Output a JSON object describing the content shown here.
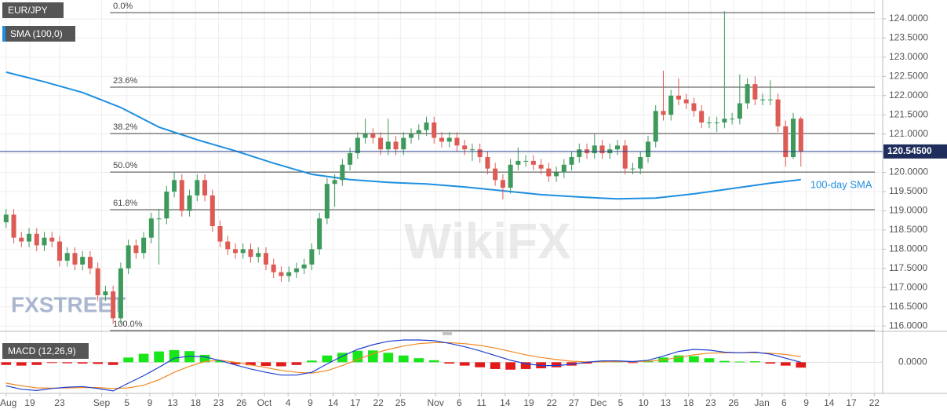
{
  "chart_data": [
    {
      "type": "candlestick",
      "title": "EUR/JPY",
      "up_color": "#3e9a5c",
      "down_color": "#dd5b55",
      "watermark": [
        "FXSTREET",
        "WikiFX"
      ],
      "xlim": [
        -0.8,
        114.7
      ],
      "xticks": [
        {
          "value": 0,
          "label": "Aug"
        },
        {
          "value": 3.1,
          "label": "19"
        },
        {
          "value": 7,
          "label": "23"
        },
        {
          "value": 12.5,
          "label": "Sep"
        },
        {
          "value": 15.8,
          "label": "5"
        },
        {
          "value": 18.8,
          "label": "9"
        },
        {
          "value": 21.8,
          "label": "13"
        },
        {
          "value": 24.8,
          "label": "18"
        },
        {
          "value": 27.8,
          "label": "23"
        },
        {
          "value": 30.8,
          "label": "26"
        },
        {
          "value": 33.8,
          "label": "Oct"
        },
        {
          "value": 36.9,
          "label": "4"
        },
        {
          "value": 39.8,
          "label": "9"
        },
        {
          "value": 42.8,
          "label": "14"
        },
        {
          "value": 45.7,
          "label": "17"
        },
        {
          "value": 48.7,
          "label": "22"
        },
        {
          "value": 51.6,
          "label": "25"
        },
        {
          "value": 56.2,
          "label": "Nov"
        },
        {
          "value": 59.3,
          "label": "6"
        },
        {
          "value": 62.2,
          "label": "11"
        },
        {
          "value": 65.3,
          "label": "14"
        },
        {
          "value": 68.4,
          "label": "19"
        },
        {
          "value": 71.4,
          "label": "22"
        },
        {
          "value": 74.3,
          "label": "27"
        },
        {
          "value": 77.5,
          "label": "Dec"
        },
        {
          "value": 80.4,
          "label": "5"
        },
        {
          "value": 83.4,
          "label": "10"
        },
        {
          "value": 86.3,
          "label": "13"
        },
        {
          "value": 89.3,
          "label": "18"
        },
        {
          "value": 92.2,
          "label": "23"
        },
        {
          "value": 95.2,
          "label": "26"
        },
        {
          "value": 98.9,
          "label": "Jan"
        },
        {
          "value": 101.8,
          "label": "6"
        },
        {
          "value": 104.7,
          "label": "9"
        },
        {
          "value": 107.7,
          "label": "14"
        },
        {
          "value": 110.6,
          "label": "17"
        },
        {
          "value": 113.6,
          "label": "22"
        }
      ],
      "ylim": [
        115.86,
        124.49
      ],
      "yticks": [
        {
          "value": 116.0,
          "label": "116.0000"
        },
        {
          "value": 116.5,
          "label": "116.5000"
        },
        {
          "value": 117.0,
          "label": "117.0000"
        },
        {
          "value": 117.5,
          "label": "117.5000"
        },
        {
          "value": 118.0,
          "label": "118.0000"
        },
        {
          "value": 118.5,
          "label": "118.5000"
        },
        {
          "value": 119.0,
          "label": "119.0000"
        },
        {
          "value": 119.5,
          "label": "119.5000"
        },
        {
          "value": 120.0,
          "label": "120.0000"
        },
        {
          "value": 120.5,
          "label": "120.5000"
        },
        {
          "value": 121.0,
          "label": "121.0000"
        },
        {
          "value": 121.5,
          "label": "121.5000"
        },
        {
          "value": 122.0,
          "label": "122.0000"
        },
        {
          "value": 122.5,
          "label": "122.5000"
        },
        {
          "value": 123.0,
          "label": "123.0000"
        },
        {
          "value": 123.5,
          "label": "123.5000"
        },
        {
          "value": 124.0,
          "label": "124.0000"
        }
      ],
      "grid": true,
      "open": [
        118.7,
        118.9,
        118.3,
        118.2,
        118.4,
        118.1,
        118.3,
        118.2,
        117.7,
        117.9,
        117.6,
        117.8,
        117.5,
        116.8,
        116.9,
        116.2,
        117.5,
        118.1,
        117.9,
        118.3,
        118.8,
        118.8,
        119.5,
        119.8,
        119.0,
        119.4,
        119.8,
        119.4,
        118.6,
        118.2,
        118.0,
        117.9,
        118.0,
        117.8,
        117.9,
        117.6,
        117.4,
        117.3,
        117.4,
        117.5,
        117.6,
        118.0,
        118.8,
        119.7,
        119.8,
        120.2,
        120.5,
        120.9,
        121.0,
        120.9,
        120.6,
        120.8,
        120.6,
        120.9,
        121.0,
        121.1,
        121.3,
        120.9,
        120.8,
        120.9,
        120.7,
        120.6,
        120.6,
        120.4,
        120.1,
        119.8,
        119.6,
        120.2,
        120.3,
        120.3,
        120.2,
        120.1,
        119.9,
        120.0,
        120.2,
        120.4,
        120.6,
        120.5,
        120.7,
        120.5,
        120.6,
        120.7,
        120.1,
        120.1,
        120.4,
        120.8,
        121.6,
        121.5,
        122.0,
        121.9,
        121.8,
        121.6,
        121.3,
        121.3,
        121.3,
        121.4,
        121.4,
        121.8,
        122.3,
        121.9,
        121.9,
        121.9,
        121.2,
        120.4,
        121.4
      ],
      "high": [
        119.05,
        119.05,
        118.45,
        118.55,
        118.55,
        118.45,
        118.45,
        118.35,
        118.05,
        118.05,
        117.95,
        117.95,
        117.65,
        117.05,
        117.05,
        117.65,
        118.25,
        118.25,
        118.45,
        118.95,
        119.05,
        119.65,
        120.0,
        119.95,
        119.55,
        119.95,
        119.95,
        119.55,
        118.75,
        118.35,
        118.15,
        118.15,
        118.15,
        118.05,
        118.05,
        117.75,
        117.55,
        117.55,
        117.65,
        117.75,
        118.15,
        118.95,
        119.85,
        119.95,
        120.35,
        120.65,
        121.05,
        121.4,
        121.15,
        121.05,
        121.4,
        120.95,
        121.05,
        121.15,
        121.25,
        121.45,
        121.45,
        121.05,
        121.05,
        121.05,
        120.85,
        120.75,
        120.75,
        120.55,
        120.25,
        119.95,
        120.35,
        120.65,
        120.45,
        120.45,
        120.35,
        120.25,
        120.15,
        120.35,
        120.55,
        120.75,
        120.75,
        121.0,
        120.85,
        120.75,
        120.85,
        120.85,
        120.25,
        120.55,
        120.95,
        121.75,
        122.65,
        122.15,
        122.45,
        122.05,
        121.95,
        121.75,
        121.45,
        121.45,
        124.2,
        121.55,
        122.55,
        122.45,
        122.5,
        122.05,
        122.4,
        122.05,
        121.35,
        121.55,
        121.45
      ],
      "low": [
        118.55,
        118.15,
        118.05,
        118.05,
        117.95,
        117.95,
        118.05,
        117.55,
        117.55,
        117.45,
        117.45,
        117.35,
        116.65,
        116.65,
        116.05,
        116.05,
        117.35,
        117.75,
        117.75,
        118.15,
        117.6,
        118.65,
        119.35,
        118.85,
        118.85,
        119.25,
        119.25,
        118.45,
        118.05,
        117.85,
        117.75,
        117.75,
        117.65,
        117.65,
        117.45,
        117.25,
        117.15,
        117.15,
        117.25,
        117.35,
        117.45,
        117.85,
        118.65,
        119.1,
        119.65,
        120.05,
        120.35,
        120.75,
        120.75,
        120.45,
        120.45,
        120.45,
        120.45,
        120.75,
        120.85,
        120.95,
        120.75,
        120.65,
        120.65,
        120.55,
        120.45,
        120.3,
        120.25,
        119.95,
        119.65,
        119.3,
        119.45,
        120.05,
        120.15,
        120.05,
        119.95,
        119.75,
        119.75,
        119.85,
        120.05,
        120.25,
        120.35,
        120.35,
        120.35,
        120.35,
        120.45,
        119.95,
        119.95,
        119.95,
        120.25,
        120.65,
        121.35,
        121.35,
        121.75,
        121.65,
        121.45,
        121.15,
        121.15,
        121.05,
        121.15,
        121.25,
        121.25,
        121.65,
        121.75,
        121.75,
        121.75,
        121.05,
        120.15,
        120.35,
        120.15
      ],
      "close": [
        118.9,
        118.3,
        118.2,
        118.4,
        118.1,
        118.3,
        118.2,
        117.7,
        117.9,
        117.6,
        117.8,
        117.5,
        116.8,
        116.9,
        116.2,
        117.5,
        118.1,
        117.9,
        118.3,
        118.8,
        118.8,
        119.5,
        119.8,
        119.0,
        119.4,
        119.8,
        119.4,
        118.6,
        118.2,
        118.0,
        117.9,
        118.0,
        117.8,
        117.9,
        117.6,
        117.4,
        117.3,
        117.4,
        117.5,
        117.6,
        118.0,
        118.8,
        119.7,
        119.8,
        120.2,
        120.5,
        120.9,
        121.0,
        120.9,
        120.6,
        120.8,
        120.6,
        120.9,
        121.0,
        121.1,
        121.3,
        120.9,
        120.8,
        120.9,
        120.7,
        120.6,
        120.6,
        120.4,
        120.1,
        119.8,
        119.6,
        120.2,
        120.3,
        120.3,
        120.2,
        120.1,
        119.9,
        120.0,
        120.2,
        120.4,
        120.6,
        120.5,
        120.7,
        120.5,
        120.6,
        120.7,
        120.1,
        120.1,
        120.4,
        120.8,
        121.6,
        121.5,
        122.0,
        121.9,
        121.8,
        121.6,
        121.3,
        121.3,
        121.3,
        121.4,
        121.4,
        121.8,
        122.3,
        121.9,
        121.9,
        121.9,
        121.2,
        120.4,
        121.4,
        120.55
      ],
      "series": [
        {
          "name": "SMA (100,0)",
          "type": "line",
          "color": "#1e8fe0",
          "annotation": "100-day SMA",
          "x": [
            0,
            5,
            10,
            15,
            20,
            25,
            30,
            35,
            40,
            45,
            50,
            55,
            60,
            65,
            70,
            75,
            80,
            85,
            90,
            95,
            100,
            104
          ],
          "values": [
            122.61,
            122.36,
            122.08,
            121.69,
            121.18,
            120.85,
            120.56,
            120.24,
            119.95,
            119.81,
            119.74,
            119.7,
            119.62,
            119.52,
            119.42,
            119.36,
            119.31,
            119.33,
            119.44,
            119.58,
            119.72,
            119.81
          ]
        }
      ],
      "fibonacci": [
        {
          "label": "0.0%",
          "value": 124.16
        },
        {
          "label": "23.6%",
          "value": 122.22
        },
        {
          "label": "38.2%",
          "value": 121.01
        },
        {
          "label": "50.0%",
          "value": 120.01
        },
        {
          "label": "61.8%",
          "value": 119.03
        },
        {
          "label": "100.0%",
          "value": 115.88
        }
      ],
      "last_price": {
        "value": 120.545,
        "label": "120.54500"
      }
    },
    {
      "type": "macd",
      "title": "MACD (12,26,9)",
      "xlim": [
        -0.8,
        114.7
      ],
      "ylim": [
        -0.9,
        0.8
      ],
      "yticks": [
        {
          "value": 0,
          "label": "0.0000"
        }
      ],
      "x": [
        0,
        2,
        4,
        6,
        8,
        10,
        12,
        14,
        16,
        18,
        20,
        22,
        24,
        26,
        28,
        30,
        32,
        34,
        36,
        38,
        40,
        42,
        44,
        46,
        48,
        50,
        52,
        54,
        56,
        58,
        60,
        62,
        64,
        66,
        68,
        70,
        72,
        74,
        76,
        78,
        80,
        82,
        84,
        86,
        88,
        90,
        92,
        94,
        96,
        98,
        100,
        102,
        104
      ],
      "macd": {
        "color": "#1f3fd0",
        "values": [
          -0.7,
          -0.8,
          -0.84,
          -0.78,
          -0.74,
          -0.72,
          -0.78,
          -0.85,
          -0.62,
          -0.4,
          -0.15,
          0.12,
          0.18,
          0.16,
          0.05,
          -0.08,
          -0.2,
          -0.3,
          -0.38,
          -0.38,
          -0.3,
          -0.05,
          0.18,
          0.38,
          0.52,
          0.62,
          0.66,
          0.66,
          0.64,
          0.56,
          0.46,
          0.34,
          0.2,
          0.06,
          -0.04,
          -0.1,
          -0.1,
          -0.06,
          0.0,
          0.04,
          0.04,
          0.02,
          0.06,
          0.18,
          0.32,
          0.38,
          0.36,
          0.3,
          0.28,
          0.3,
          0.24,
          0.12,
          0.0
        ]
      },
      "signal": {
        "color": "#f08a24",
        "values": [
          -0.62,
          -0.7,
          -0.76,
          -0.77,
          -0.76,
          -0.75,
          -0.75,
          -0.78,
          -0.76,
          -0.68,
          -0.52,
          -0.3,
          -0.12,
          0.02,
          0.06,
          0.0,
          -0.08,
          -0.16,
          -0.24,
          -0.3,
          -0.32,
          -0.25,
          -0.1,
          0.08,
          0.25,
          0.38,
          0.48,
          0.55,
          0.58,
          0.58,
          0.55,
          0.5,
          0.42,
          0.32,
          0.22,
          0.14,
          0.08,
          0.03,
          0.01,
          0.01,
          0.02,
          0.02,
          0.03,
          0.07,
          0.14,
          0.22,
          0.27,
          0.28,
          0.28,
          0.28,
          0.27,
          0.23,
          0.17
        ]
      },
      "histogram": {
        "positive_color": "#19e619",
        "negative_color": "#e31a1a",
        "values": [
          -0.08,
          -0.1,
          -0.08,
          -0.02,
          -0.03,
          -0.04,
          -0.05,
          -0.08,
          0.14,
          0.25,
          0.32,
          0.36,
          0.33,
          0.22,
          0.05,
          -0.06,
          -0.09,
          -0.11,
          -0.12,
          -0.08,
          0.05,
          0.2,
          0.28,
          0.34,
          0.35,
          0.28,
          0.2,
          0.12,
          0.06,
          -0.04,
          -0.1,
          -0.15,
          -0.2,
          -0.22,
          -0.2,
          -0.18,
          -0.15,
          -0.1,
          -0.04,
          0.03,
          0.03,
          -0.02,
          0.04,
          0.14,
          0.2,
          0.18,
          0.12,
          0.04,
          0.02,
          0.03,
          -0.04,
          -0.1,
          -0.16
        ]
      }
    }
  ]
}
